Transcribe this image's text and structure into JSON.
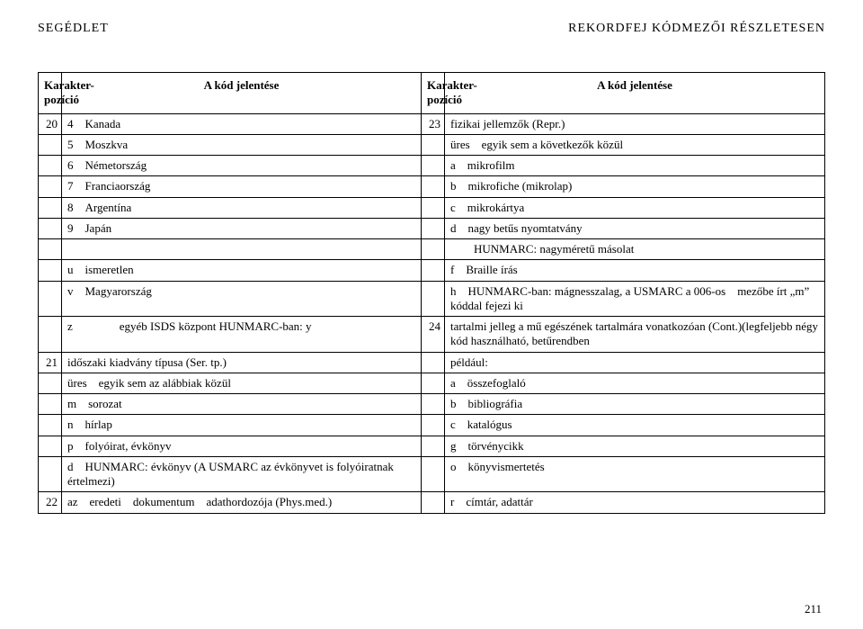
{
  "header": {
    "left": "SEGÉDLET",
    "right": "REKORDFEJ KÓDMEZŐI RÉSZLETESEN"
  },
  "tableHead": {
    "colA": "Karakter-pozíció",
    "colB": "A kód jelentése",
    "colC": "Karakter-pozíció",
    "colD": "A kód jelentése"
  },
  "rows": [
    {
      "posA": "20",
      "codeA": "4 Kanada",
      "posB": "23",
      "codeB": "fizikai jellemzők (Repr.)"
    },
    {
      "posA": "",
      "codeA": "5 Moszkva",
      "posB": "",
      "codeB": "üres egyik sem a következők közül"
    },
    {
      "posA": "",
      "codeA": "6 Németország",
      "posB": "",
      "codeB": "a mikrofilm"
    },
    {
      "posA": "",
      "codeA": "7 Franciaország",
      "posB": "",
      "codeB": "b mikrofiche (mikrolap)"
    },
    {
      "posA": "",
      "codeA": "8 Argentína",
      "posB": "",
      "codeB": "c mikrokártya"
    },
    {
      "posA": "",
      "codeA": "9 Japán",
      "posB": "",
      "codeB": "d nagy betűs nyomtatvány"
    },
    {
      "posA": "",
      "codeA": "",
      "posB": "",
      "codeB": "  HUNMARC: nagyméretű másolat"
    },
    {
      "posA": "",
      "codeA": "u ismeretlen",
      "posB": "",
      "codeB": "f Braille írás"
    },
    {
      "posA": "",
      "codeA": "v Magyarország",
      "posB": "",
      "codeB": "h HUNMARC-ban: mágnesszalag, a USMARC a 006-os mezőbe írt „m” kóddal fejezi ki"
    },
    {
      "posA": "",
      "codeA": "z    egyéb ISDS központ HUNMARC-ban: y",
      "posB": "24",
      "codeB": "tartalmi jelleg a mű egészének tartalmára vonatkozóan (Cont.)(legfeljebb négy kód használható, betűrendben"
    },
    {
      "posA": "21",
      "codeA": "időszaki kiadvány típusa (Ser. tp.)",
      "posB": "",
      "codeB": "például:"
    },
    {
      "posA": "",
      "codeA": "üres egyik sem az alábbiak közül",
      "posB": "",
      "codeB": "a összefoglaló"
    },
    {
      "posA": "",
      "codeA": "m sorozat",
      "posB": "",
      "codeB": "b bibliográfia"
    },
    {
      "posA": "",
      "codeA": "n hírlap",
      "posB": "",
      "codeB": "c katalógus"
    },
    {
      "posA": "",
      "codeA": "p folyóirat, évkönyv",
      "posB": "",
      "codeB": "g törvénycikk"
    },
    {
      "posA": "",
      "codeA": "d HUNMARC: évkönyv (A USMARC az évkönyvet is folyóiratnak értelmezi)",
      "posB": "",
      "codeB": "o könyvismertetés"
    },
    {
      "posA": "22",
      "codeA": "az eredeti dokumentum adathordozója (Phys.med.)",
      "posB": "",
      "codeB": "r címtár, adattár"
    }
  ],
  "pageNumber": "211"
}
